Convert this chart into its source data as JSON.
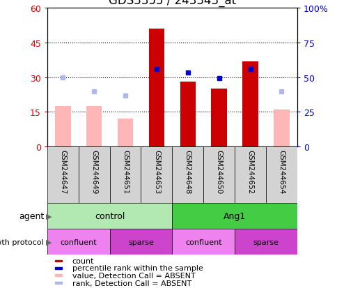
{
  "title": "GDS3355 / 243343_at",
  "samples": [
    "GSM244647",
    "GSM244649",
    "GSM244651",
    "GSM244653",
    "GSM244648",
    "GSM244650",
    "GSM244652",
    "GSM244654"
  ],
  "count_values": [
    null,
    null,
    null,
    51,
    28,
    25,
    37,
    null
  ],
  "absent_value_bars": [
    17.5,
    17.5,
    12,
    null,
    null,
    null,
    null,
    16
  ],
  "absent_rank_dots": [
    30,
    24,
    22,
    null,
    null,
    null,
    null,
    24
  ],
  "percentile_rank_dots": [
    null,
    null,
    null,
    33.5,
    32,
    29.5,
    33.5,
    null
  ],
  "ylim_left": [
    0,
    60
  ],
  "ylim_right": [
    0,
    100
  ],
  "yticks_left": [
    0,
    15,
    30,
    45,
    60
  ],
  "ytick_labels_left": [
    "0",
    "15",
    "30",
    "45",
    "60"
  ],
  "ytick_labels_right": [
    "0",
    "25",
    "50",
    "75",
    "100%"
  ],
  "agent_groups": [
    {
      "label": "control",
      "start": 0,
      "end": 4,
      "color": "#b2e8b2"
    },
    {
      "label": "Ang1",
      "start": 4,
      "end": 8,
      "color": "#44cc44"
    }
  ],
  "growth_groups": [
    {
      "label": "confluent",
      "start": 0,
      "end": 2,
      "color": "#ee82ee"
    },
    {
      "label": "sparse",
      "start": 2,
      "end": 4,
      "color": "#cc44cc"
    },
    {
      "label": "confluent",
      "start": 4,
      "end": 6,
      "color": "#ee82ee"
    },
    {
      "label": "sparse",
      "start": 6,
      "end": 8,
      "color": "#cc44cc"
    }
  ],
  "legend_items": [
    {
      "label": "count",
      "color": "#cc0000"
    },
    {
      "label": "percentile rank within the sample",
      "color": "#0000cc"
    },
    {
      "label": "value, Detection Call = ABSENT",
      "color": "#ffb6b6"
    },
    {
      "label": "rank, Detection Call = ABSENT",
      "color": "#b0b8e8"
    }
  ],
  "bar_width": 0.5,
  "absent_bar_color": "#ffb6b6",
  "absent_rank_color": "#b0b8e8",
  "count_color": "#cc0000",
  "percentile_dot_color": "#0000cc",
  "title_fontsize": 12
}
